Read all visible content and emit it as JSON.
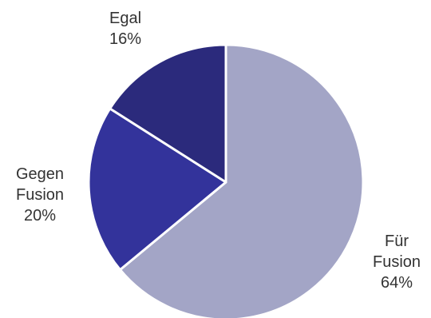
{
  "chart_data": {
    "type": "pie",
    "categories": [
      "Für Fusion",
      "Gegen Fusion",
      "Egal"
    ],
    "values": [
      64,
      20,
      16
    ],
    "unit": "%",
    "colors": [
      "#a3a5c6",
      "#33339b",
      "#2b2a7c"
    ],
    "edge_color": "#ffffff",
    "labels": [
      {
        "lines": [
          "Für",
          "Fusion"
        ],
        "percent": "64%"
      },
      {
        "lines": [
          "Gegen",
          "Fusion"
        ],
        "percent": "20%"
      },
      {
        "lines": [
          "Egal"
        ],
        "percent": "16%"
      }
    ]
  }
}
